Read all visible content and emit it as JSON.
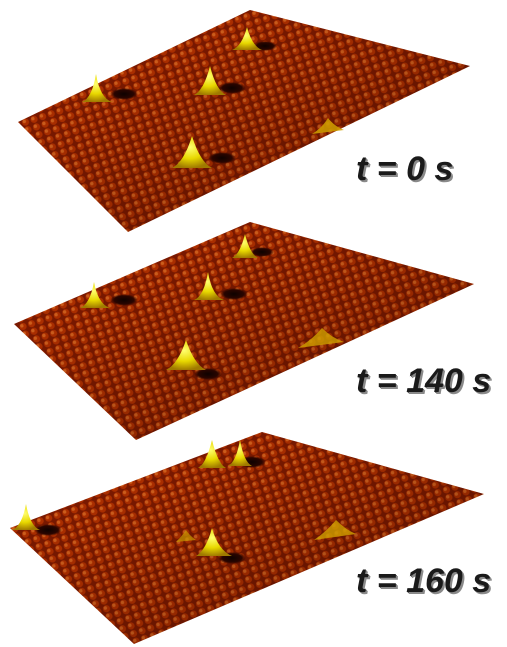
{
  "figure": {
    "panels": [
      {
        "time_label": "t = 0 s"
      },
      {
        "time_label": "t = 140 s"
      },
      {
        "time_label": "t = 160 s"
      }
    ],
    "colors": {
      "surface_dark": "#5a0e00",
      "surface_mid": "#b02a00",
      "surface_light": "#e05a10",
      "adatom_peak": "#ffff40",
      "adatom_base": "#c8b000",
      "vacancy": "#150300"
    }
  }
}
